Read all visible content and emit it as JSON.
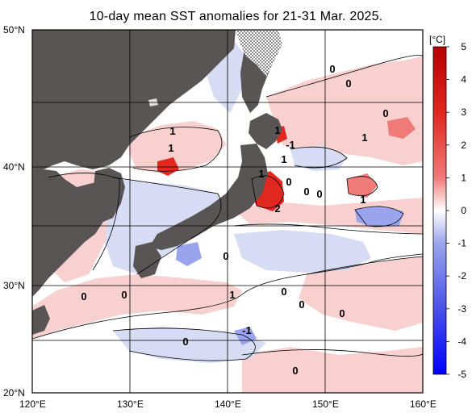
{
  "title": "10-day mean SST anomalies for 21-31 Mar. 2025.",
  "map": {
    "lat_labels": [
      "50°N",
      "40°N",
      "30°N",
      "20°N"
    ],
    "lon_labels": [
      "120°E",
      "130°E",
      "140°E",
      "150°E",
      "160°E"
    ],
    "extent": {
      "lon_min": 120,
      "lon_max": 160,
      "lat_min": 20,
      "lat_max": 50
    }
  },
  "contour_labels": [
    "0",
    "0",
    "0",
    "1",
    "1",
    "1",
    "-1",
    "1",
    "0",
    "0",
    "0",
    "1",
    "2",
    "1",
    "1",
    "0",
    "0",
    "0",
    "0",
    "1",
    "0",
    "0",
    "-1",
    "0",
    "0"
  ],
  "colorbar": {
    "unit": "[°C]",
    "ticks": [
      "5",
      "4",
      "3",
      "2",
      "1",
      "0",
      "-1",
      "-2",
      "-3",
      "-4",
      "-5"
    ]
  },
  "colors": {
    "land": "#5a5555",
    "positive_strong": "#e0281e",
    "positive_light": "#f8d0d0",
    "negative_light": "#d6dcf4",
    "negative_strong": "#3030e8",
    "neutral": "#ffffff"
  }
}
